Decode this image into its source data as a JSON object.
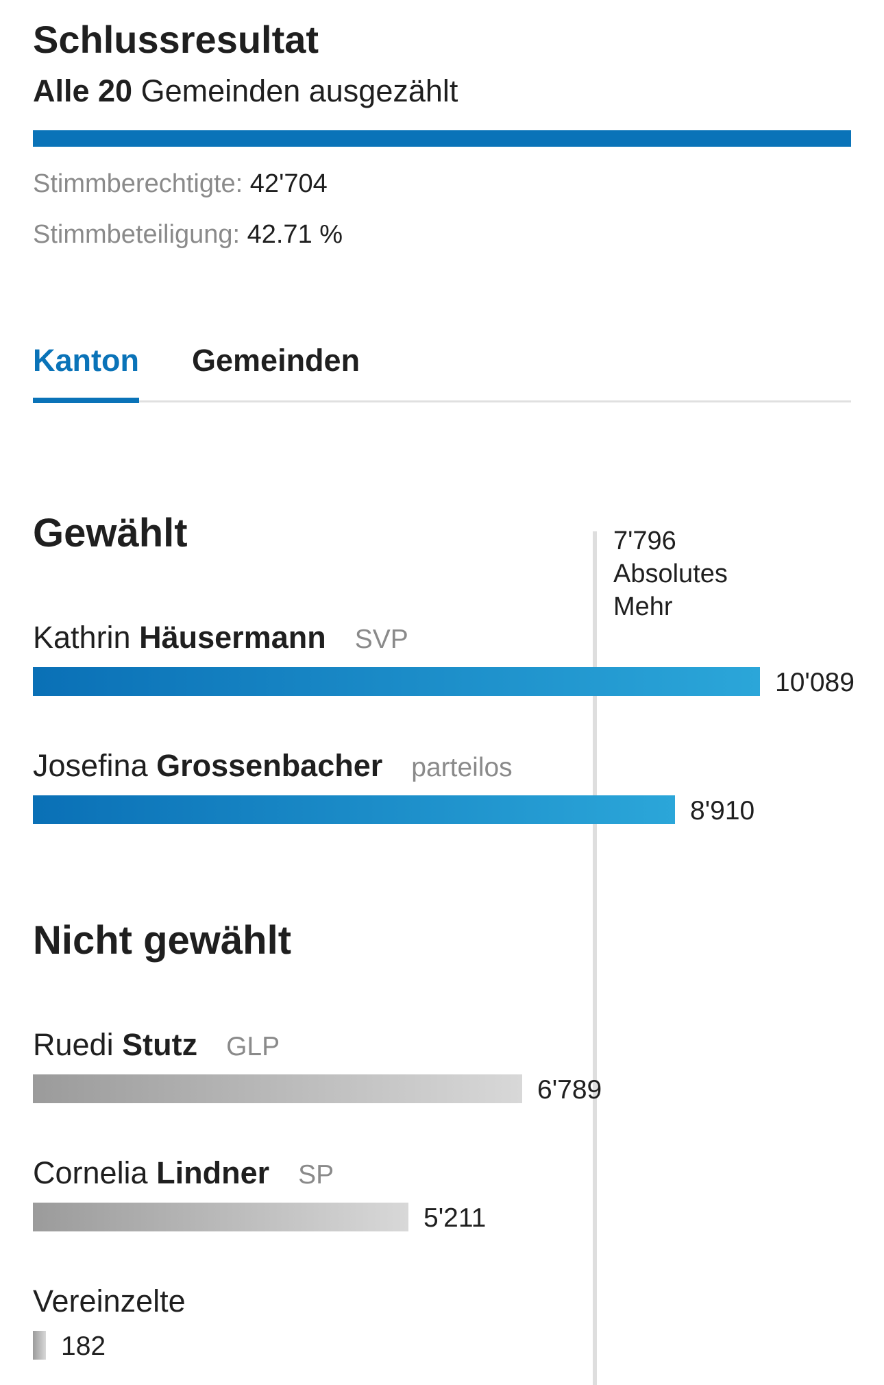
{
  "header": {
    "title": "Schlussresultat",
    "subtitle_strong": "Alle 20",
    "subtitle_rest": " Gemeinden ausgezählt",
    "progress_percent": 100,
    "voters_label": "Stimmberechtigte:",
    "voters_value": "42'704",
    "turnout_label": "Stimmbeteiligung:",
    "turnout_value": "42.71 %"
  },
  "tabs": [
    {
      "label": "Kanton",
      "active": true
    },
    {
      "label": "Gemeinden",
      "active": false
    }
  ],
  "sections": {
    "elected": "Gewählt",
    "not_elected": "Nicht gewählt"
  },
  "absolute_majority": {
    "value_label": "7'796",
    "label_line1": "Absolutes",
    "label_line2": "Mehr"
  },
  "colors": {
    "accent": "#0a73b8",
    "elected_bar_start": "#0a70b6",
    "elected_bar_end": "#2ba6d9",
    "other_bar_start": "#9b9b9b",
    "other_bar_end": "#d8d8d8"
  },
  "chart_data": {
    "type": "bar",
    "orientation": "horizontal",
    "absolute_majority": 7796,
    "candidates": [
      {
        "first": "Kathrin",
        "last": "Häusermann",
        "party": "SVP",
        "votes": 10089,
        "votes_label": "10'089",
        "elected": true
      },
      {
        "first": "Josefina",
        "last": "Grossenbacher",
        "party": "parteilos",
        "votes": 8910,
        "votes_label": "8'910",
        "elected": true
      },
      {
        "first": "Ruedi",
        "last": "Stutz",
        "party": "GLP",
        "votes": 6789,
        "votes_label": "6'789",
        "elected": false
      },
      {
        "first": "Cornelia",
        "last": "Lindner",
        "party": "SP",
        "votes": 5211,
        "votes_label": "5'211",
        "elected": false
      },
      {
        "first": "Vereinzelte",
        "last": "",
        "party": "",
        "votes": 182,
        "votes_label": "182",
        "elected": false
      }
    ]
  }
}
